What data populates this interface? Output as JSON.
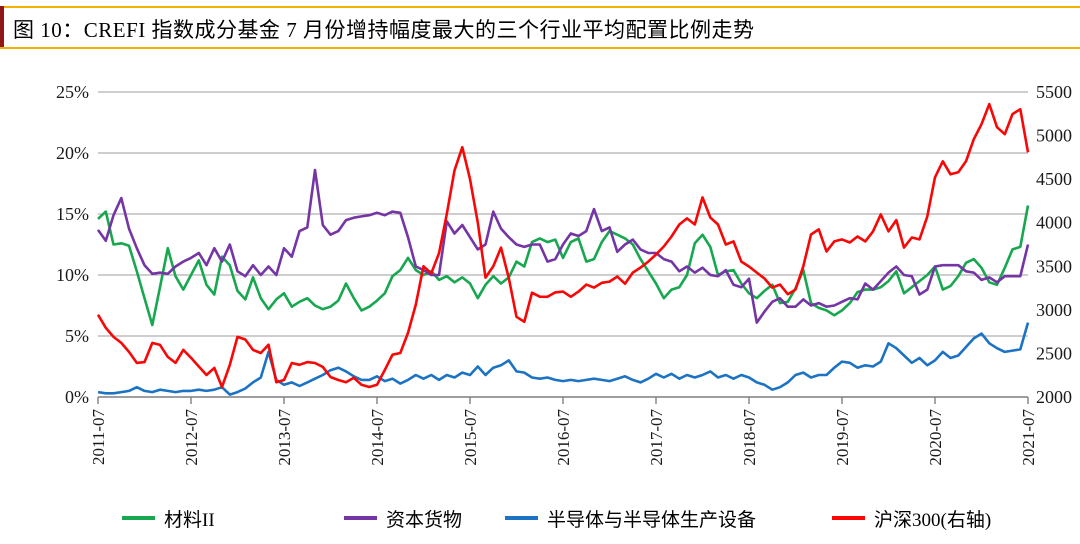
{
  "header": {
    "title": "图 10：CREFI 指数成分基金 7 月份增持幅度最大的三个行业平均配置比例走势"
  },
  "colors": {
    "title_rule_gold": "#F0B400",
    "title_accent_maroon": "#8E1818",
    "gridline_gray": "#9C9C9C",
    "axis_gray": "#7F7F7F",
    "series_green": "#17A74F",
    "series_purple": "#7535A5",
    "series_blue": "#1C73C4",
    "series_red": "#F90606"
  },
  "chart_data": {
    "type": "line",
    "title": "",
    "x_start": "2011-07",
    "x_end": "2021-07",
    "x_interval": "monthly",
    "x_tick_every": 12,
    "x_tick_labels": [
      "2011-07",
      "2012-07",
      "2013-07",
      "2014-07",
      "2015-07",
      "2016-07",
      "2017-07",
      "2018-07",
      "2019-07",
      "2020-07",
      "2021-07"
    ],
    "grid": true,
    "legend_position": "bottom",
    "left_axis": {
      "min": 0,
      "max": 25,
      "tick_values": [
        0,
        5,
        10,
        15,
        20,
        25
      ],
      "tick_labels": [
        "0%",
        "5%",
        "10%",
        "15%",
        "20%",
        "25%"
      ]
    },
    "right_axis": {
      "min": 2000,
      "max": 5500,
      "tick_values": [
        2000,
        2500,
        3000,
        3500,
        4000,
        4500,
        5000,
        5500
      ],
      "tick_labels": [
        "2000",
        "2500",
        "3000",
        "3500",
        "4000",
        "4500",
        "5000",
        "5500"
      ]
    },
    "series": [
      {
        "name": "材料II",
        "axis": "left",
        "color": "#17A74F",
        "values": [
          14.6,
          15.2,
          12.5,
          12.6,
          12.4,
          10.3,
          8.1,
          5.9,
          9.0,
          12.2,
          9.9,
          8.8,
          10.0,
          11.2,
          9.2,
          8.4,
          11.5,
          10.8,
          8.7,
          8.0,
          9.8,
          8.1,
          7.2,
          8.0,
          8.5,
          7.4,
          7.8,
          8.1,
          7.5,
          7.2,
          7.4,
          7.9,
          9.3,
          8.1,
          7.1,
          7.4,
          7.9,
          8.5,
          9.9,
          10.4,
          11.4,
          10.4,
          10.0,
          10.3,
          9.6,
          9.9,
          9.4,
          9.8,
          9.3,
          8.1,
          9.2,
          9.9,
          9.3,
          9.8,
          11.1,
          10.7,
          12.7,
          13.0,
          12.7,
          12.9,
          11.4,
          12.7,
          13.0,
          11.1,
          11.3,
          12.7,
          13.6,
          13.3,
          13.0,
          12.5,
          11.3,
          10.3,
          9.3,
          8.1,
          8.8,
          9.0,
          10.0,
          12.6,
          13.3,
          12.3,
          10.0,
          10.3,
          10.4,
          9.3,
          8.5,
          8.1,
          8.7,
          9.2,
          7.7,
          7.8,
          8.9,
          10.4,
          7.7,
          7.3,
          7.1,
          6.7,
          7.1,
          7.7,
          8.6,
          8.8,
          8.8,
          9.0,
          9.5,
          10.3,
          8.5,
          9.0,
          9.5,
          10.0,
          10.7,
          8.8,
          9.1,
          9.9,
          11.0,
          11.3,
          10.6,
          9.4,
          9.2,
          10.6,
          12.1,
          12.3,
          15.7
        ]
      },
      {
        "name": "资本货物",
        "axis": "left",
        "color": "#7535A5",
        "values": [
          13.7,
          12.8,
          14.9,
          16.3,
          13.8,
          12.2,
          10.8,
          10.1,
          10.2,
          10.1,
          10.7,
          11.1,
          11.4,
          11.8,
          10.8,
          12.2,
          11.1,
          12.5,
          10.3,
          9.9,
          10.8,
          10.0,
          10.7,
          10.0,
          12.2,
          11.5,
          13.6,
          13.9,
          18.6,
          14.1,
          13.3,
          13.6,
          14.5,
          14.7,
          14.8,
          14.9,
          15.1,
          14.9,
          15.2,
          15.1,
          13.1,
          10.7,
          10.4,
          10.0,
          10.0,
          14.4,
          13.4,
          14.1,
          13.1,
          12.1,
          12.5,
          15.2,
          13.8,
          13.1,
          12.5,
          12.3,
          12.5,
          12.5,
          11.1,
          11.3,
          12.5,
          13.4,
          13.2,
          13.6,
          15.4,
          13.6,
          13.9,
          11.9,
          12.5,
          12.9,
          12.1,
          11.8,
          11.8,
          11.3,
          11.1,
          10.3,
          10.7,
          10.2,
          10.6,
          10.0,
          9.9,
          10.4,
          9.2,
          9.0,
          9.7,
          6.1,
          7.0,
          7.8,
          8.1,
          7.4,
          7.4,
          8.0,
          7.5,
          7.7,
          7.4,
          7.5,
          7.8,
          8.1,
          8.0,
          9.3,
          8.8,
          9.5,
          10.2,
          10.7,
          10.0,
          9.9,
          8.4,
          8.8,
          10.7,
          10.8,
          10.8,
          10.8,
          10.3,
          10.2,
          9.6,
          9.8,
          9.4,
          9.9,
          9.9,
          9.9,
          12.5
        ]
      },
      {
        "name": "半导体与半导体生产设备",
        "axis": "left",
        "color": "#1C73C4",
        "values": [
          0.4,
          0.3,
          0.3,
          0.4,
          0.5,
          0.8,
          0.5,
          0.4,
          0.6,
          0.5,
          0.4,
          0.5,
          0.5,
          0.6,
          0.5,
          0.6,
          0.8,
          0.2,
          0.4,
          0.7,
          1.2,
          1.6,
          3.7,
          1.4,
          1.0,
          1.2,
          0.9,
          1.2,
          1.5,
          1.8,
          2.2,
          2.4,
          2.1,
          1.7,
          1.4,
          1.4,
          1.7,
          1.3,
          1.5,
          1.1,
          1.4,
          1.8,
          1.5,
          1.8,
          1.4,
          1.8,
          1.6,
          2.0,
          1.8,
          2.5,
          1.8,
          2.4,
          2.6,
          3.0,
          2.1,
          2.0,
          1.6,
          1.5,
          1.6,
          1.4,
          1.3,
          1.4,
          1.3,
          1.4,
          1.5,
          1.4,
          1.3,
          1.5,
          1.7,
          1.4,
          1.2,
          1.5,
          1.9,
          1.6,
          1.9,
          1.5,
          1.8,
          1.6,
          1.8,
          2.1,
          1.6,
          1.8,
          1.5,
          1.8,
          1.6,
          1.2,
          1.0,
          0.6,
          0.8,
          1.2,
          1.8,
          2.0,
          1.6,
          1.8,
          1.8,
          2.4,
          2.9,
          2.8,
          2.4,
          2.6,
          2.5,
          2.9,
          4.4,
          4.0,
          3.4,
          2.8,
          3.2,
          2.6,
          3.0,
          3.7,
          3.2,
          3.4,
          4.1,
          4.8,
          5.2,
          4.4,
          4.0,
          3.7,
          3.8,
          3.9,
          6.1
        ]
      },
      {
        "name": "沪深300(右轴)",
        "axis": "right",
        "color": "#F90606",
        "values": [
          2944,
          2794,
          2690,
          2621,
          2518,
          2391,
          2400,
          2621,
          2598,
          2460,
          2391,
          2541,
          2450,
          2350,
          2253,
          2334,
          2115,
          2368,
          2690,
          2660,
          2540,
          2505,
          2600,
          2170,
          2195,
          2390,
          2370,
          2400,
          2390,
          2345,
          2230,
          2195,
          2170,
          2220,
          2140,
          2115,
          2140,
          2310,
          2485,
          2505,
          2735,
          3060,
          3500,
          3420,
          3650,
          4100,
          4600,
          4866,
          4500,
          4000,
          3370,
          3500,
          3715,
          3365,
          2920,
          2863,
          3197,
          3151,
          3150,
          3200,
          3209,
          3150,
          3209,
          3290,
          3255,
          3310,
          3324,
          3382,
          3300,
          3427,
          3485,
          3554,
          3635,
          3727,
          3842,
          3980,
          4050,
          3980,
          4291,
          4060,
          3980,
          3750,
          3785,
          3554,
          3497,
          3428,
          3360,
          3255,
          3290,
          3180,
          3232,
          3500,
          3865,
          3923,
          3670,
          3785,
          3808,
          3773,
          3842,
          3785,
          3900,
          4095,
          3900,
          4030,
          3715,
          3830,
          3808,
          4072,
          4521,
          4705,
          4555,
          4578,
          4705,
          4958,
          5131,
          5361,
          5096,
          5016,
          5246,
          5303,
          4808
        ]
      }
    ]
  },
  "legend": {
    "items": [
      {
        "label": "材料II"
      },
      {
        "label": "资本货物"
      },
      {
        "label": "半导体与半导体生产设备"
      },
      {
        "label": "沪深300(右轴)"
      }
    ]
  }
}
